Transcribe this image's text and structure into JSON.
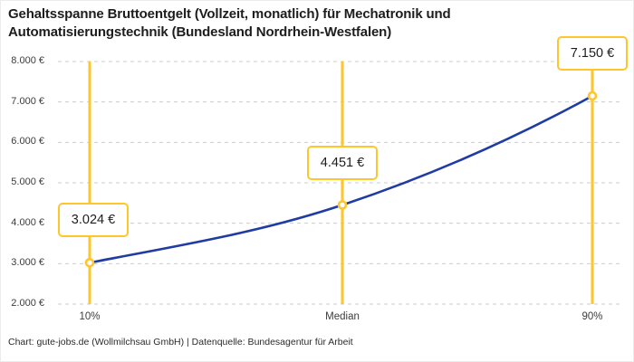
{
  "title": "Gehaltsspanne Bruttoentgelt (Vollzeit, monatlich) für Mechatronik und\nAutomatisierungstechnik (Bundesland Nordrhein-Westfalen)",
  "footer": "Chart: gute-jobs.de (Wollmilchsau GmbH) | Datenquelle: Bundesagentur für Arbeit",
  "colors": {
    "accent_yellow": "#FFC62C",
    "line_blue": "#1F3CA4",
    "grid_gray": "#CDCDCD",
    "title_text": "#1D1D1D",
    "tick_text": "#3C3C3C"
  },
  "chart_data": {
    "type": "line",
    "title": "Gehaltsspanne Bruttoentgelt (Vollzeit, monatlich) für Mechatronik und Automatisierungstechnik (Bundesland Nordrhein-Westfalen)",
    "categories": [
      "10%",
      "Median",
      "90%"
    ],
    "values": [
      3024,
      4451,
      7150
    ],
    "point_labels": [
      "3.024 €",
      "4.451 €",
      "7.150 €"
    ],
    "y_ticks": [
      "8.000 €",
      "7.000 €",
      "6.000 €",
      "5.000 €",
      "4.000 €",
      "3.000 €",
      "2.000 €"
    ],
    "ylim": [
      2000,
      8000
    ],
    "y_tick_step": 1000,
    "xlabel": "",
    "ylabel": "",
    "grid": "horizontal-dashed",
    "legend": "none",
    "marker": "open-circle-yellow",
    "vertical_guides": "yellow line at each percentile"
  }
}
